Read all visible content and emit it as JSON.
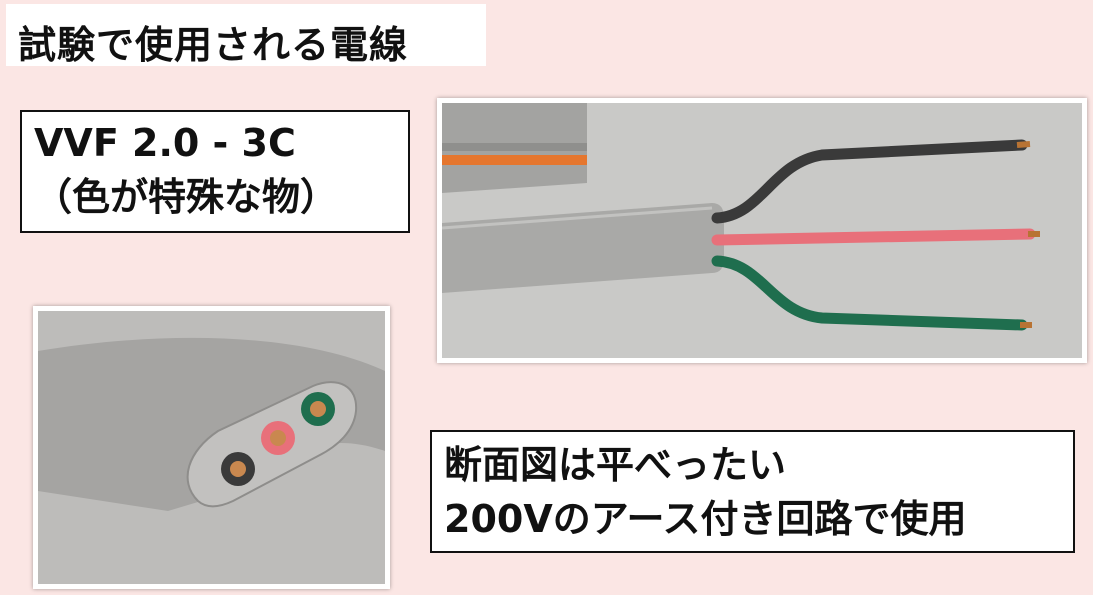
{
  "title": "試験で使用される電線",
  "spec": {
    "line1": "VVF 2.0 - 3C",
    "line2": "（色が特殊な物）"
  },
  "note": {
    "line1": "断面図は平べったい",
    "line2": "200Vのアース付き回路で使用"
  },
  "colors": {
    "background": "#fbe6e4",
    "sheath": "#a9a9a7",
    "wire_black": "#3a3a3a",
    "wire_pink": "#e8707a",
    "wire_green": "#1f6e4e",
    "stripe_orange": "#e5762e"
  }
}
